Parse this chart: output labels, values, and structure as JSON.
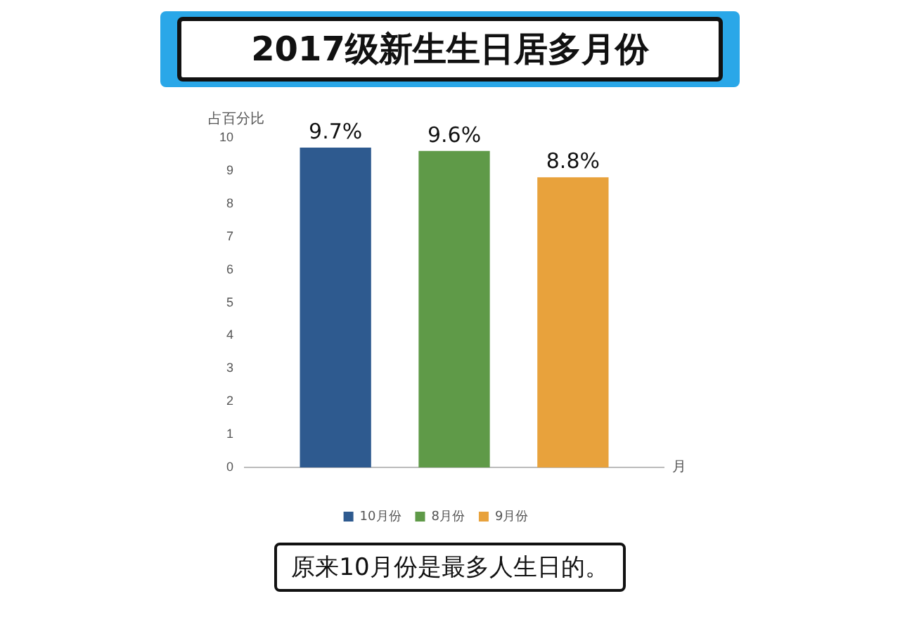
{
  "chart_data": {
    "type": "bar",
    "title": "2017级新生生日居多月份",
    "ylabel": "占百分比",
    "xlabel": "月",
    "categories": [
      null
    ],
    "series": [
      {
        "name": "10月份",
        "color": "#2e5a8f",
        "values": [
          9.7
        ],
        "value_labels": [
          "9.7%"
        ]
      },
      {
        "name": "8月份",
        "color": "#5f9a48",
        "values": [
          9.6
        ],
        "value_labels": [
          "9.6%"
        ]
      },
      {
        "name": "9月份",
        "color": "#e8a23c",
        "values": [
          8.8
        ],
        "value_labels": [
          "8.8%"
        ]
      }
    ],
    "ylim": [
      0,
      10
    ],
    "yticks": [
      0,
      1,
      2,
      3,
      4,
      5,
      6,
      7,
      8,
      9,
      10
    ],
    "grid": false,
    "legend": "bottom",
    "annotations": [
      "原来10月份是最多人生日的。"
    ]
  }
}
